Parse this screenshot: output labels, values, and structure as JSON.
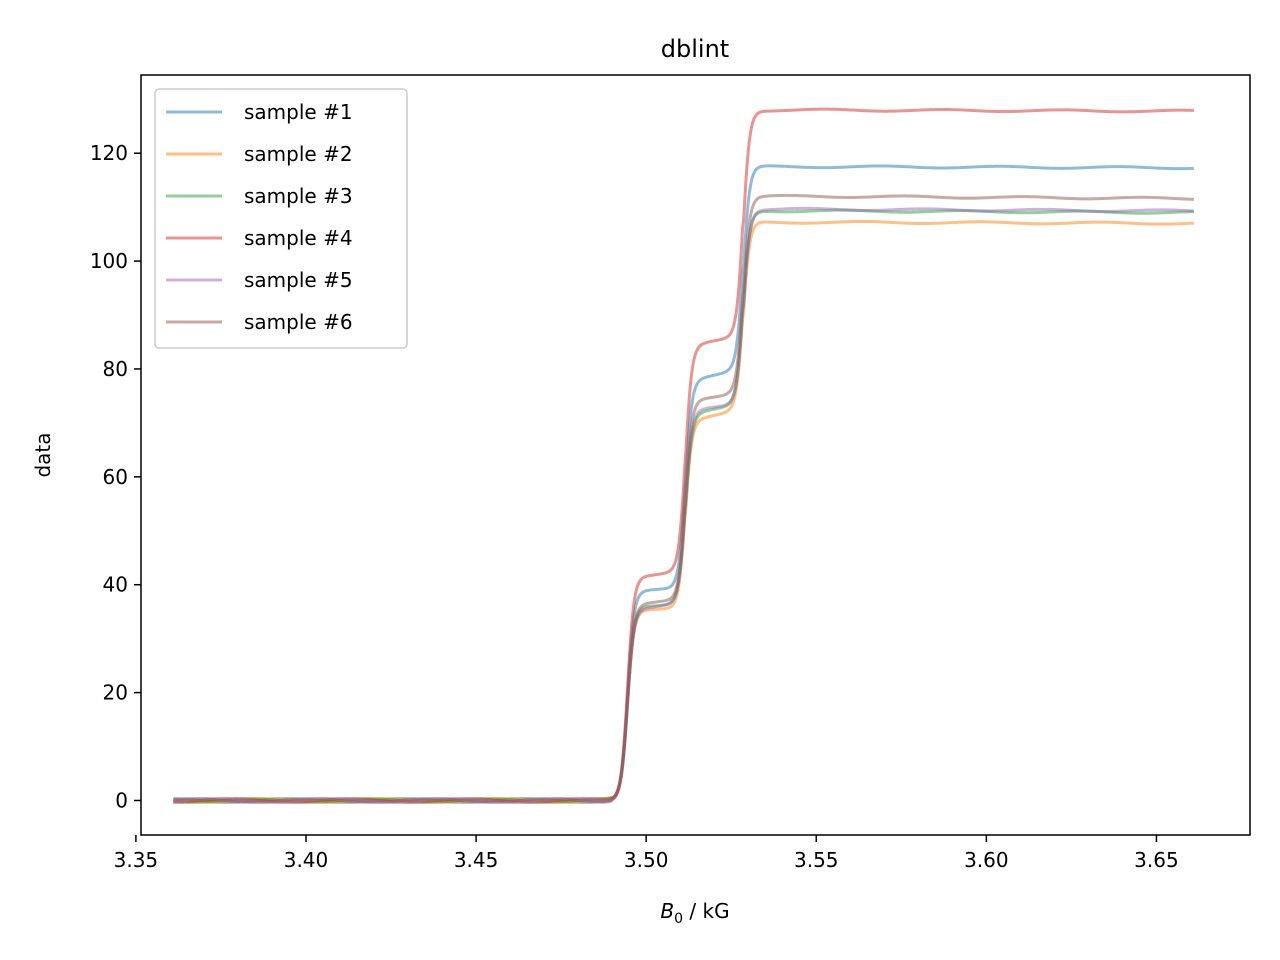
{
  "chart_data": {
    "type": "line",
    "title": "dblint",
    "xlabel_main": "B",
    "xlabel_sub": "0",
    "xlabel_unit": " / kG",
    "ylabel": "data",
    "xlim": [
      3.3515,
      3.6775
    ],
    "ylim": [
      -6.4,
      134.5
    ],
    "xticks": [
      3.35,
      3.4,
      3.45,
      3.5,
      3.55,
      3.6,
      3.65
    ],
    "xtick_labels": [
      "3.35",
      "3.40",
      "3.45",
      "3.50",
      "3.55",
      "3.60",
      "3.65"
    ],
    "yticks": [
      0,
      20,
      40,
      60,
      80,
      100,
      120
    ],
    "ytick_labels": [
      "0",
      "20",
      "40",
      "60",
      "80",
      "100",
      "120"
    ],
    "legend_position": "upper-left",
    "step_centers": [
      3.4945,
      3.5115,
      3.5285
    ],
    "x_start": 3.361,
    "x_end": 3.661,
    "series": [
      {
        "name": "sample #1",
        "color": "#1f77b4",
        "levels": [
          0,
          38.5,
          78,
          117.5
        ],
        "final": 117.3
      },
      {
        "name": "sample #2",
        "color": "#ff7f0e",
        "levels": [
          0,
          35,
          70.5,
          107.2
        ],
        "final": 107.0
      },
      {
        "name": "sample #3",
        "color": "#2ca02c",
        "levels": [
          0,
          35.8,
          71.5,
          109.3
        ],
        "final": 109.0
      },
      {
        "name": "sample #4",
        "color": "#d62728",
        "levels": [
          0,
          41.5,
          84,
          128
        ],
        "final": 127.8
      },
      {
        "name": "sample #5",
        "color": "#9467bd",
        "levels": [
          0,
          35.5,
          72,
          109.6
        ],
        "final": 109.3
      },
      {
        "name": "sample #6",
        "color": "#8c564b",
        "levels": [
          0,
          36.2,
          74,
          112
        ],
        "final": 111.6
      }
    ]
  }
}
